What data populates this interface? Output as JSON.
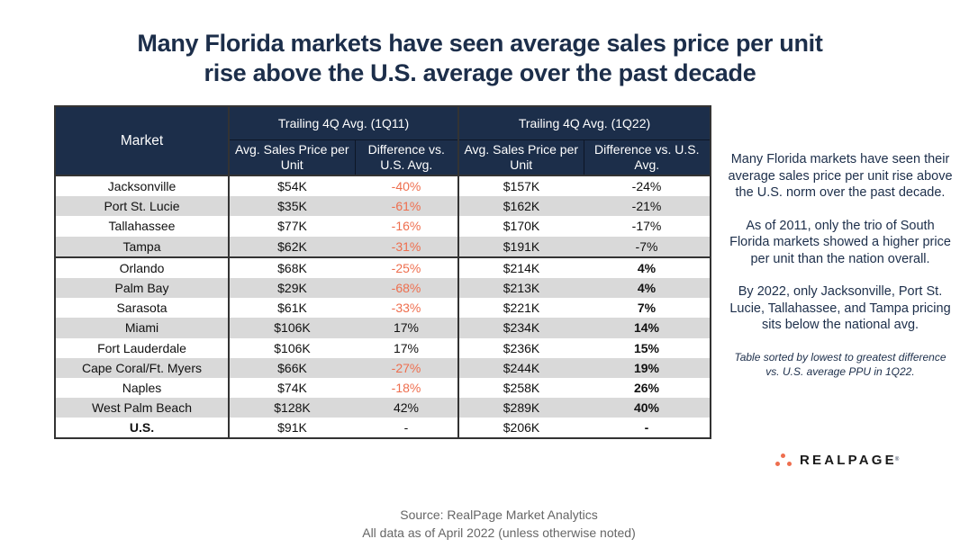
{
  "title": {
    "line1": "Many Florida markets have seen average sales price per unit",
    "line2": "rise above the U.S. average over the past decade"
  },
  "table": {
    "market_header": "Market",
    "groups": [
      {
        "label": "Trailing 4Q Avg. (1Q11)",
        "price_header": "Avg. Sales Price per Unit",
        "diff_header": "Difference vs. U.S. Avg."
      },
      {
        "label": "Trailing 4Q Avg. (1Q22)",
        "price_header": "Avg. Sales Price per Unit",
        "diff_header": "Difference vs. U.S. Avg."
      }
    ],
    "rows": [
      {
        "market": "Jacksonville",
        "price_11": "$54K",
        "diff_11": "-40%",
        "price_22": "$157K",
        "diff_22": "-24%"
      },
      {
        "market": "Port St. Lucie",
        "price_11": "$35K",
        "diff_11": "-61%",
        "price_22": "$162K",
        "diff_22": "-21%"
      },
      {
        "market": "Tallahassee",
        "price_11": "$77K",
        "diff_11": "-16%",
        "price_22": "$170K",
        "diff_22": "-17%"
      },
      {
        "market": "Tampa",
        "price_11": "$62K",
        "diff_11": "-31%",
        "price_22": "$191K",
        "diff_22": "-7%"
      },
      {
        "market": "Orlando",
        "price_11": "$68K",
        "diff_11": "-25%",
        "price_22": "$214K",
        "diff_22": "4%"
      },
      {
        "market": "Palm Bay",
        "price_11": "$29K",
        "diff_11": "-68%",
        "price_22": "$213K",
        "diff_22": "4%"
      },
      {
        "market": "Sarasota",
        "price_11": "$61K",
        "diff_11": "-33%",
        "price_22": "$221K",
        "diff_22": "7%"
      },
      {
        "market": "Miami",
        "price_11": "$106K",
        "diff_11": "17%",
        "price_22": "$234K",
        "diff_22": "14%"
      },
      {
        "market": "Fort Lauderdale",
        "price_11": "$106K",
        "diff_11": "17%",
        "price_22": "$236K",
        "diff_22": "15%"
      },
      {
        "market": "Cape Coral/Ft. Myers",
        "price_11": "$66K",
        "diff_11": "-27%",
        "price_22": "$244K",
        "diff_22": "19%"
      },
      {
        "market": "Naples",
        "price_11": "$74K",
        "diff_11": "-18%",
        "price_22": "$258K",
        "diff_22": "26%"
      },
      {
        "market": "West Palm Beach",
        "price_11": "$128K",
        "diff_11": "42%",
        "price_22": "$289K",
        "diff_22": "40%"
      },
      {
        "market": "U.S.",
        "price_11": "$91K",
        "diff_11": "-",
        "price_22": "$206K",
        "diff_22": "-"
      }
    ],
    "negative_color": "#ee6e4e",
    "header_color": "#1c2e4a",
    "alt_row_color": "#d9d9d9"
  },
  "sidebar": {
    "para1": "Many Florida markets have seen their average sales price per unit rise above the U.S. norm over the past decade.",
    "para2": "As of 2011, only the trio of South Florida markets showed a higher price per unit than the nation overall.",
    "para3": "By 2022, only Jacksonville, Port St. Lucie, Tallahassee, and Tampa pricing sits below the national avg.",
    "note": "Table sorted by lowest to greatest difference vs. U.S. average PPU in 1Q22."
  },
  "logo": {
    "text": "REALPAGE",
    "mark": "®",
    "icon": "realpage-dots-icon"
  },
  "footer": {
    "source": "Source: RealPage Market Analytics",
    "asof": "All data as of April 2022 (unless otherwise noted)"
  }
}
